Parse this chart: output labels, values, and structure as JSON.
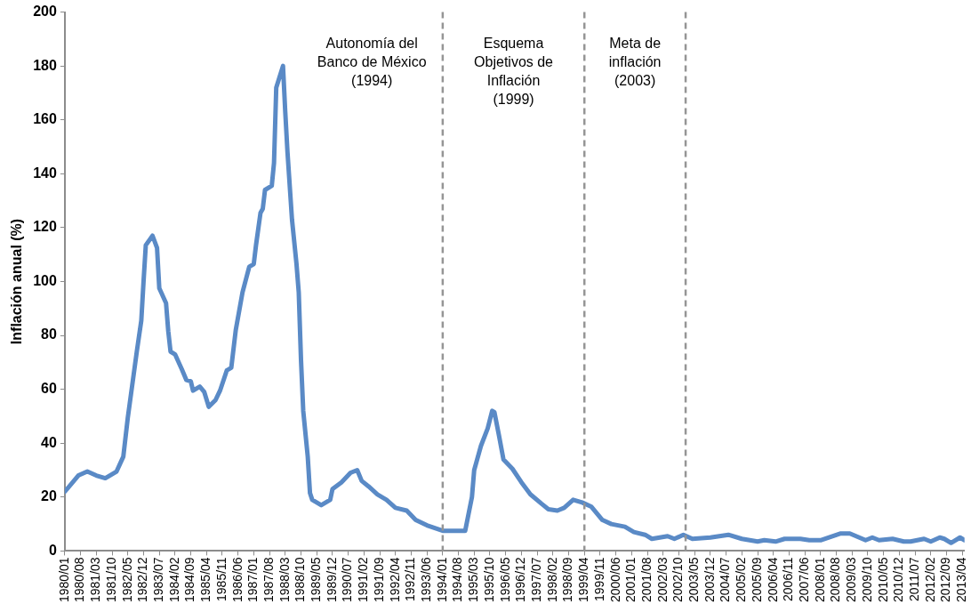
{
  "chart_data": {
    "type": "line",
    "ylabel": "Inflación anual (%)",
    "xlim": [
      "1980-01",
      "2013-05"
    ],
    "ylim": [
      0,
      200
    ],
    "yticks": [
      0,
      20,
      40,
      60,
      80,
      100,
      120,
      140,
      160,
      180,
      200
    ],
    "xticks": [
      {
        "value": "1980-01",
        "label": "1980/01"
      },
      {
        "value": "1980-08",
        "label": "1980/08"
      },
      {
        "value": "1981-03",
        "label": "1981/03"
      },
      {
        "value": "1981-10",
        "label": "1981/10"
      },
      {
        "value": "1982-05",
        "label": "1982/05"
      },
      {
        "value": "1982-12",
        "label": "1982/12"
      },
      {
        "value": "1983-07",
        "label": "1983/07"
      },
      {
        "value": "1984-02",
        "label": "1984/02"
      },
      {
        "value": "1984-09",
        "label": "1984/09"
      },
      {
        "value": "1985-04",
        "label": "1985/04"
      },
      {
        "value": "1985-11",
        "label": "1985/11"
      },
      {
        "value": "1986-06",
        "label": "1986/06"
      },
      {
        "value": "1987-01",
        "label": "1987/01"
      },
      {
        "value": "1987-08",
        "label": "1987/08"
      },
      {
        "value": "1988-03",
        "label": "1988/03"
      },
      {
        "value": "1988-10",
        "label": "1988/10"
      },
      {
        "value": "1989-05",
        "label": "1989/05"
      },
      {
        "value": "1989-12",
        "label": "1989/12"
      },
      {
        "value": "1990-07",
        "label": "1990/07"
      },
      {
        "value": "1991-02",
        "label": "1991/02"
      },
      {
        "value": "1991-09",
        "label": "1991/09"
      },
      {
        "value": "1992-04",
        "label": "1992/04"
      },
      {
        "value": "1992-11",
        "label": "1992/11"
      },
      {
        "value": "1993-06",
        "label": "1993/06"
      },
      {
        "value": "1994-01",
        "label": "1994/01"
      },
      {
        "value": "1994-08",
        "label": "1994/08"
      },
      {
        "value": "1995-03",
        "label": "1995/03"
      },
      {
        "value": "1995-10",
        "label": "1995/10"
      },
      {
        "value": "1996-05",
        "label": "1996/05"
      },
      {
        "value": "1996-12",
        "label": "1996/12"
      },
      {
        "value": "1997-07",
        "label": "1997/07"
      },
      {
        "value": "1998-02",
        "label": "1998/02"
      },
      {
        "value": "1998-09",
        "label": "1998/09"
      },
      {
        "value": "1999-04",
        "label": "1999/04"
      },
      {
        "value": "1999-11",
        "label": "1999/11"
      },
      {
        "value": "2000-06",
        "label": "2000/06"
      },
      {
        "value": "2001-01",
        "label": "2001/01"
      },
      {
        "value": "2001-08",
        "label": "2001/08"
      },
      {
        "value": "2002-03",
        "label": "2002/03"
      },
      {
        "value": "2002-10",
        "label": "2002/10"
      },
      {
        "value": "2003-05",
        "label": "2003/05"
      },
      {
        "value": "2003-12",
        "label": "2003/12"
      },
      {
        "value": "2004-07",
        "label": "2004/07"
      },
      {
        "value": "2005-02",
        "label": "2005/02"
      },
      {
        "value": "2005-09",
        "label": "2005/09"
      },
      {
        "value": "2006-04",
        "label": "2006/04"
      },
      {
        "value": "2006-11",
        "label": "2006/11"
      },
      {
        "value": "2007-06",
        "label": "2007/06"
      },
      {
        "value": "2008-01",
        "label": "2008/01"
      },
      {
        "value": "2008-08",
        "label": "2008/08"
      },
      {
        "value": "2009-03",
        "label": "2009/03"
      },
      {
        "value": "2009-10",
        "label": "2009/10"
      },
      {
        "value": "2010-05",
        "label": "2010/05"
      },
      {
        "value": "2010-12",
        "label": "2010/12"
      },
      {
        "value": "2011-07",
        "label": "2011/07"
      },
      {
        "value": "2012-02",
        "label": "2012/02"
      },
      {
        "value": "2012-09",
        "label": "2012/09"
      },
      {
        "value": "2013-04",
        "label": "2013/04"
      }
    ],
    "series": [
      {
        "color": "#5a8ac6",
        "x": [
          "1980-01",
          "1980-07",
          "1980-11",
          "1981-03",
          "1981-07",
          "1981-10",
          "1981-12",
          "1982-03",
          "1982-05",
          "1982-09",
          "1982-11",
          "1982-12",
          "1983-01",
          "1983-04",
          "1983-06",
          "1983-07",
          "1983-10",
          "1983-11",
          "1983-12",
          "1984-02",
          "1984-05",
          "1984-07",
          "1984-09",
          "1984-10",
          "1985-01",
          "1985-03",
          "1985-05",
          "1985-08",
          "1985-10",
          "1986-01",
          "1986-03",
          "1986-05",
          "1986-08",
          "1986-11",
          "1987-01",
          "1987-02",
          "1987-04",
          "1987-05",
          "1987-06",
          "1987-09",
          "1987-10",
          "1987-11",
          "1988-02",
          "1988-03",
          "1988-04",
          "1988-06",
          "1988-08",
          "1988-09",
          "1988-10",
          "1988-11",
          "1989-01",
          "1989-02",
          "1989-03",
          "1989-07",
          "1989-11",
          "1989-12",
          "1990-04",
          "1990-08",
          "1990-11",
          "1991-01",
          "1991-04",
          "1991-08",
          "1991-12",
          "1992-04",
          "1992-09",
          "1993-01",
          "1993-06",
          "1994-01",
          "1994-11",
          "1995-02",
          "1995-03",
          "1995-06",
          "1995-09",
          "1995-11",
          "1995-12",
          "1996-02",
          "1996-04",
          "1996-08",
          "1996-12",
          "1997-04",
          "1997-09",
          "1997-12",
          "1998-04",
          "1998-07",
          "1998-11",
          "1999-03",
          "1999-07",
          "1999-12",
          "2000-04",
          "2000-10",
          "2001-02",
          "2001-07",
          "2001-10",
          "2002-05",
          "2002-08",
          "2002-12",
          "2003-04",
          "2003-12",
          "2004-08",
          "2005-02",
          "2005-09",
          "2005-12",
          "2006-05",
          "2006-09",
          "2007-04",
          "2007-08",
          "2008-01",
          "2008-10",
          "2009-02",
          "2009-09",
          "2009-12",
          "2010-03",
          "2010-09",
          "2011-02",
          "2011-05",
          "2011-11",
          "2012-02",
          "2012-06",
          "2012-08",
          "2012-11",
          "2013-03",
          "2013-05"
        ],
        "values": [
          22,
          28,
          29.5,
          28,
          27,
          28.5,
          29.5,
          35,
          49.5,
          74,
          85.5,
          100,
          113.5,
          117,
          112.5,
          97.5,
          92,
          81.5,
          74,
          73,
          67.5,
          63.5,
          63,
          59.5,
          61,
          59,
          53.5,
          56,
          59.5,
          67,
          68,
          82,
          96,
          105.5,
          106.5,
          113.5,
          125.5,
          127,
          134,
          135.5,
          144,
          172,
          180,
          163,
          148,
          123,
          106.5,
          96,
          71,
          52,
          35,
          21.5,
          19,
          17,
          19,
          23,
          25.5,
          29,
          30,
          26,
          24,
          21,
          19,
          16,
          15,
          11.5,
          9.5,
          7.5,
          7.5,
          20,
          30,
          39,
          45.5,
          52,
          51.5,
          43,
          34,
          30.5,
          25.5,
          21,
          17.5,
          15.5,
          15,
          16,
          19,
          18,
          16.5,
          11.5,
          10,
          9,
          7,
          6,
          4.5,
          5.5,
          4.5,
          6,
          4.5,
          5,
          6,
          4.5,
          3.5,
          4,
          3.5,
          4.5,
          4.5,
          4,
          4,
          6.5,
          6.5,
          4,
          5,
          4,
          4.5,
          3.5,
          3.5,
          4.5,
          3.5,
          5,
          4.5,
          3,
          5,
          4
        ]
      }
    ],
    "ref_lines": [
      {
        "axis": "x",
        "value": "1994-01",
        "label": "Autonomía del\nBanco de México\n(1994)",
        "color": "#959595",
        "line_style": "dashed"
      },
      {
        "axis": "x",
        "value": "1999-04",
        "label": "Esquema\nObjetivos de\nInflación\n(1999)",
        "color": "#959595",
        "line_style": "dashed"
      },
      {
        "axis": "x",
        "value": "2003-01",
        "label": "Meta de\ninflación\n(2003)",
        "color": "#959595",
        "line_style": "dashed"
      }
    ],
    "grid": false,
    "legend": false
  }
}
